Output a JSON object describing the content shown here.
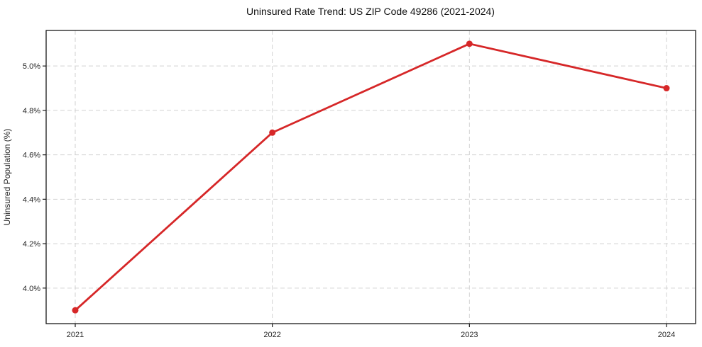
{
  "figure": {
    "background": "#ffffff"
  },
  "chart_data": {
    "type": "line",
    "title": "Uninsured Rate Trend: US ZIP Code 49286 (2021-2024)",
    "xlabel": "",
    "ylabel": "Uninsured Population (%)",
    "x": [
      "2021",
      "2022",
      "2023",
      "2024"
    ],
    "values": [
      3.9,
      4.7,
      5.1,
      4.9
    ],
    "yticks": [
      4.0,
      4.2,
      4.4,
      4.6,
      4.8,
      5.0
    ],
    "ytick_suffix": "%",
    "ylim": [
      3.84,
      5.16
    ],
    "grid": true,
    "grid_style": "dashed",
    "legend": "none",
    "marker": "circle",
    "colors": {
      "line": "#d62728",
      "marker": "#d62728",
      "grid": "#d2d2d2",
      "axis": "#1a1a1a",
      "text": "#262626",
      "background": "#ffffff"
    }
  }
}
